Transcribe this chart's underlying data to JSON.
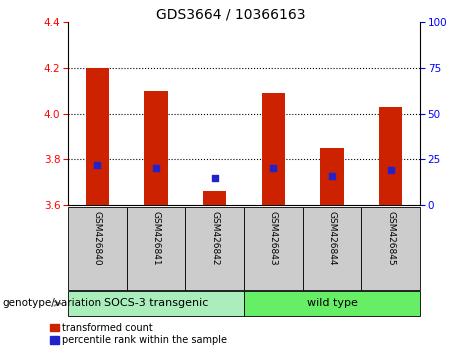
{
  "title": "GDS3664 / 10366163",
  "samples": [
    "GSM426840",
    "GSM426841",
    "GSM426842",
    "GSM426843",
    "GSM426844",
    "GSM426845"
  ],
  "bar_tops": [
    4.2,
    4.1,
    3.66,
    4.09,
    3.85,
    4.03
  ],
  "bar_base": 3.6,
  "percentile_values": [
    3.775,
    3.762,
    3.718,
    3.762,
    3.726,
    3.755
  ],
  "ylim": [
    3.6,
    4.4
  ],
  "yticks_left": [
    3.6,
    3.8,
    4.0,
    4.2,
    4.4
  ],
  "yticks_right": [
    0,
    25,
    50,
    75,
    100
  ],
  "bar_color": "#cc2200",
  "blue_color": "#2222cc",
  "groups": [
    {
      "label": "SOCS-3 transgenic",
      "indices": [
        0,
        1,
        2
      ],
      "color": "#aaeebb"
    },
    {
      "label": "wild type",
      "indices": [
        3,
        4,
        5
      ],
      "color": "#66ee66"
    }
  ],
  "xlabel": "genotype/variation",
  "legend_red": "transformed count",
  "legend_blue": "percentile rank within the sample",
  "bar_width": 0.4,
  "sample_box_color": "#cccccc",
  "arrow_color": "#888888"
}
